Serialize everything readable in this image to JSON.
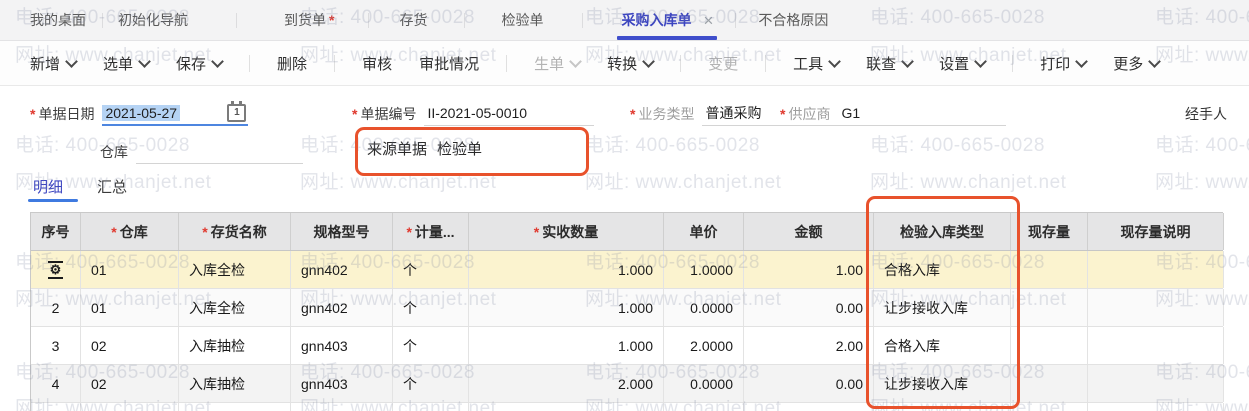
{
  "required_marker": "*",
  "icons": {
    "gear": "⚙",
    "close": "×",
    "calendar_day": "1"
  },
  "tabs": {
    "items": [
      {
        "label": "我的桌面"
      },
      {
        "label": "初始化导航"
      },
      {
        "label": "到货单",
        "required": true
      },
      {
        "label": "存货"
      },
      {
        "label": "检验单"
      },
      {
        "label": "采购入库单",
        "active": true
      },
      {
        "label": "不合格原因"
      }
    ]
  },
  "toolbar": {
    "items": [
      {
        "label": "新增",
        "caret": true
      },
      {
        "label": "选单",
        "caret": true
      },
      {
        "label": "保存",
        "caret": true
      },
      {
        "label": "删除"
      },
      {
        "label": "审核"
      },
      {
        "label": "审批情况"
      },
      {
        "label": "生单",
        "caret": true,
        "disabled": true
      },
      {
        "label": "转换",
        "caret": true
      },
      {
        "label": "变更",
        "disabled": true
      },
      {
        "label": "工具",
        "caret": true
      },
      {
        "label": "联查",
        "caret": true
      },
      {
        "label": "设置",
        "caret": true
      },
      {
        "label": "打印",
        "caret": true
      },
      {
        "label": "更多",
        "caret": true
      }
    ]
  },
  "form": {
    "doc_date": {
      "label": "单据日期",
      "value": "2021-05-27"
    },
    "doc_no": {
      "label": "单据编号",
      "value": "II-2021-05-0010"
    },
    "biz_type": {
      "label": "业务类型",
      "value": "普通采购"
    },
    "supplier": {
      "label": "供应商",
      "value": "G1"
    },
    "handler": {
      "label": "经手人"
    },
    "warehouse": {
      "label": "仓库",
      "value": ""
    },
    "source_doc": {
      "label": "来源单据",
      "value": "检验单"
    }
  },
  "detail_tabs": {
    "detail": "明细",
    "summary": "汇总"
  },
  "table": {
    "headers": [
      {
        "label": "序号"
      },
      {
        "label": "仓库",
        "required": true
      },
      {
        "label": "存货名称",
        "required": true
      },
      {
        "label": "规格型号"
      },
      {
        "label": "计量...",
        "required": true
      },
      {
        "label": "实收数量",
        "required": true
      },
      {
        "label": "单价"
      },
      {
        "label": "金额"
      },
      {
        "label": "检验入库类型"
      },
      {
        "label": "现存量"
      },
      {
        "label": "现存量说明"
      }
    ],
    "rows": [
      {
        "seq": "",
        "warehouse": "01",
        "item": "入库全检",
        "spec": "gnn402",
        "unit": "个",
        "qty": "1.000",
        "price": "1.0000",
        "amount": "1.00",
        "type": "合格入库",
        "stock": "",
        "note": ""
      },
      {
        "seq": "2",
        "warehouse": "01",
        "item": "入库全检",
        "spec": "gnn402",
        "unit": "个",
        "qty": "1.000",
        "price": "0.0000",
        "amount": "0.00",
        "type": "让步接收入库",
        "stock": "",
        "note": ""
      },
      {
        "seq": "3",
        "warehouse": "02",
        "item": "入库抽检",
        "spec": "gnn403",
        "unit": "个",
        "qty": "1.000",
        "price": "2.0000",
        "amount": "2.00",
        "type": "合格入库",
        "stock": "",
        "note": ""
      },
      {
        "seq": "4",
        "warehouse": "02",
        "item": "入库抽检",
        "spec": "gnn403",
        "unit": "个",
        "qty": "2.000",
        "price": "0.0000",
        "amount": "0.00",
        "type": "让步接收入库",
        "stock": "",
        "note": ""
      }
    ]
  },
  "watermark": {
    "phone": "电话: 400-665-0028",
    "web": "网址: www.chanjet.net"
  },
  "colors": {
    "accent_blue": "#3b44c0",
    "highlight_orange": "#e8522c",
    "active_row_yellow": "#fbf3cf",
    "date_selection_blue": "#b5d3f4"
  }
}
